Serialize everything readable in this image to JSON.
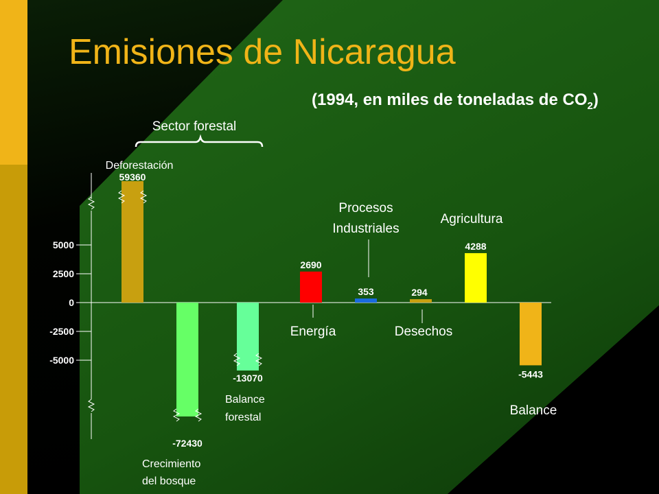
{
  "slide": {
    "title": "Emisiones de Nicaragua",
    "subtitle_main": "(1994, en miles de toneladas de CO",
    "subtitle_sub": "2",
    "subtitle_end": ")",
    "colors": {
      "background_dark": "#000000",
      "background_green": "#1a5a12",
      "accent_gold": "#f0b418",
      "accent_gold_dark": "#c89c08"
    }
  },
  "chart_data": {
    "type": "bar",
    "title": "Emisiones de Nicaragua",
    "subtitle": "(1994, en miles de toneladas de CO2)",
    "ylim": [
      -5000,
      5000
    ],
    "y_ticks": [
      5000,
      2500,
      0,
      -2500,
      -5000
    ],
    "y_tick_labels": [
      "5000",
      "2500",
      "0",
      "-2500",
      "-5000"
    ],
    "axis_break": true,
    "group_label": "Sector forestal",
    "bars": [
      {
        "label": "Deforestación",
        "value": 59360,
        "value_label": "59360",
        "color": "#c8a010",
        "broken": true
      },
      {
        "label": "Crecimiento del bosque",
        "label_lines": [
          "Crecimiento",
          "del bosque"
        ],
        "value": -72430,
        "value_label": "-72430",
        "color": "#66ff66",
        "broken": true
      },
      {
        "label": "Balance forestal",
        "label_lines": [
          "Balance",
          "forestal"
        ],
        "value": -13070,
        "value_label": "-13070",
        "color": "#66ff99",
        "broken": true
      },
      {
        "label": "Energía",
        "value": 2690,
        "value_label": "2690",
        "color": "#ff0000",
        "broken": false
      },
      {
        "label": "Procesos Industriales",
        "label_lines": [
          "Procesos",
          "Industriales"
        ],
        "value": 353,
        "value_label": "353",
        "color": "#1a6be0",
        "broken": false
      },
      {
        "label": "Desechos",
        "value": 294,
        "value_label": "294",
        "color": "#c8a010",
        "broken": false
      },
      {
        "label": "Agricultura",
        "value": 4288,
        "value_label": "4288",
        "color": "#ffff00",
        "broken": false
      },
      {
        "label": "Balance",
        "value": -5443,
        "value_label": "-5443",
        "color": "#f0b418",
        "broken": false
      }
    ]
  }
}
